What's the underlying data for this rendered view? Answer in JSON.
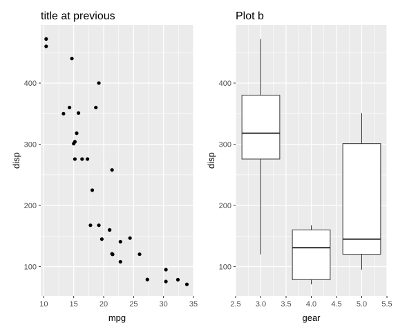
{
  "chart_data": [
    {
      "type": "scatter",
      "title": "title at previous",
      "xlabel": "mpg",
      "ylabel": "disp",
      "xlim": [
        9.5,
        35
      ],
      "ylim": [
        52,
        495
      ],
      "xticks": [
        10,
        15,
        20,
        25,
        30,
        35
      ],
      "yticks": [
        100,
        200,
        300,
        400
      ],
      "grid": true,
      "background": "#ebebeb",
      "point_color": "#000000",
      "points": [
        {
          "x": 21.0,
          "y": 160
        },
        {
          "x": 21.0,
          "y": 160
        },
        {
          "x": 22.8,
          "y": 108
        },
        {
          "x": 21.4,
          "y": 258
        },
        {
          "x": 18.7,
          "y": 360
        },
        {
          "x": 18.1,
          "y": 225
        },
        {
          "x": 14.3,
          "y": 360
        },
        {
          "x": 24.4,
          "y": 146.7
        },
        {
          "x": 22.8,
          "y": 140.8
        },
        {
          "x": 19.2,
          "y": 167.6
        },
        {
          "x": 17.8,
          "y": 167.6
        },
        {
          "x": 16.4,
          "y": 275.8
        },
        {
          "x": 17.3,
          "y": 275.8
        },
        {
          "x": 15.2,
          "y": 275.8
        },
        {
          "x": 10.4,
          "y": 472
        },
        {
          "x": 10.4,
          "y": 460
        },
        {
          "x": 14.7,
          "y": 440
        },
        {
          "x": 32.4,
          "y": 78.7
        },
        {
          "x": 30.4,
          "y": 75.7
        },
        {
          "x": 33.9,
          "y": 71.1
        },
        {
          "x": 21.5,
          "y": 120.1
        },
        {
          "x": 15.5,
          "y": 318
        },
        {
          "x": 15.2,
          "y": 304
        },
        {
          "x": 13.3,
          "y": 350
        },
        {
          "x": 19.2,
          "y": 400
        },
        {
          "x": 27.3,
          "y": 79
        },
        {
          "x": 26.0,
          "y": 120.3
        },
        {
          "x": 30.4,
          "y": 95.1
        },
        {
          "x": 15.8,
          "y": 351
        },
        {
          "x": 19.7,
          "y": 145
        },
        {
          "x": 15.0,
          "y": 301
        },
        {
          "x": 21.4,
          "y": 121
        }
      ]
    },
    {
      "type": "boxplot",
      "title": "Plot b",
      "xlabel": "gear",
      "ylabel": "disp",
      "xlim": [
        2.5,
        5.5
      ],
      "ylim": [
        52,
        495
      ],
      "xticks": [
        2.5,
        3.0,
        3.5,
        4.0,
        4.5,
        5.0,
        5.5
      ],
      "yticks": [
        100,
        200,
        300,
        400
      ],
      "grid": true,
      "background": "#ebebeb",
      "box_fill": "#ffffff",
      "line_color": "#333333",
      "boxes": [
        {
          "x": 3,
          "min": 120.1,
          "q1": 275.8,
          "median": 318,
          "q3": 380,
          "max": 472
        },
        {
          "x": 4,
          "min": 71.1,
          "q1": 78.85,
          "median": 130.9,
          "q3": 160,
          "max": 167.6
        },
        {
          "x": 5,
          "min": 95.1,
          "q1": 120.3,
          "median": 145,
          "q3": 301,
          "max": 351
        }
      ]
    }
  ]
}
